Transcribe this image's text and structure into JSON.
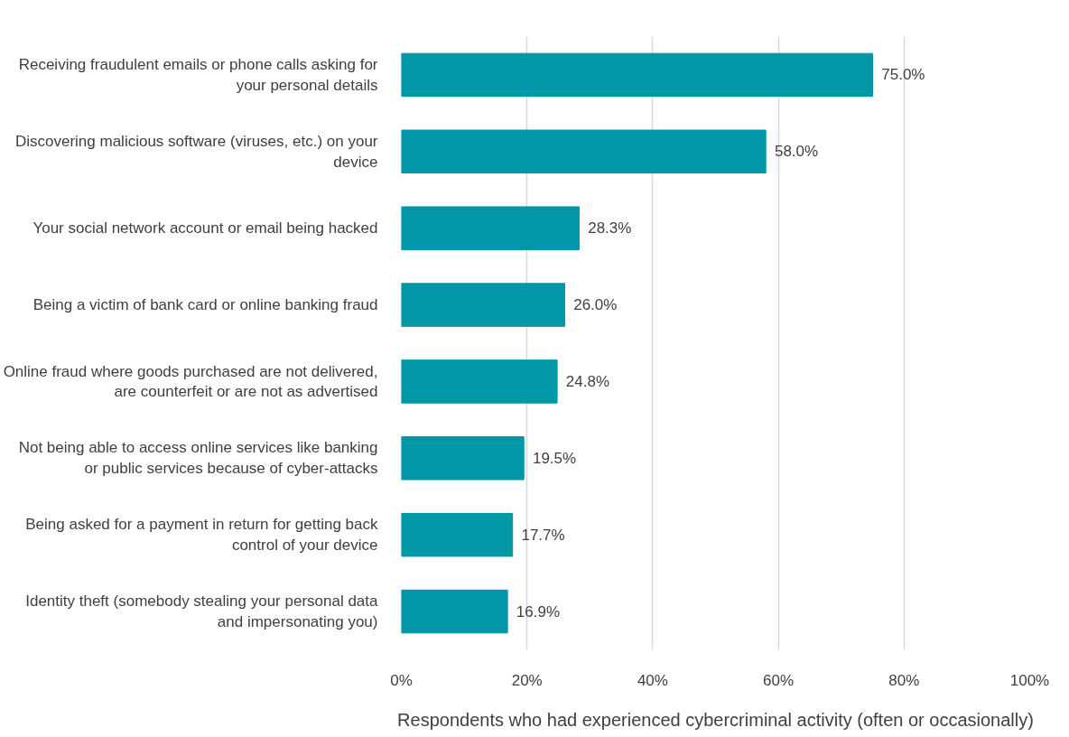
{
  "chart_data": {
    "type": "bar",
    "orientation": "horizontal",
    "xlabel": "Respondents who had experienced cybercriminal activity (often or occasionally)",
    "categories": [
      "Receiving fraudulent emails or phone calls asking for your personal details",
      "Discovering malicious software (viruses, etc.) on your device",
      "Your social network account or email being hacked",
      "Being a victim of bank card or online banking fraud",
      "Online fraud where goods purchased are not delivered, are counterfeit or are not as advertised",
      "Not being able to access online services like banking or public services because of cyber-attacks",
      "Being asked for a payment in return for getting back control of your device",
      "Identity theft (somebody stealing your personal data and impersonating you)"
    ],
    "values": [
      75.0,
      58.0,
      28.3,
      26.0,
      24.8,
      19.5,
      17.7,
      16.9
    ],
    "value_labels": [
      "75.0%",
      "58.0%",
      "28.3%",
      "26.0%",
      "24.8%",
      "19.5%",
      "17.7%",
      "16.9%"
    ],
    "color": "#0097a7",
    "xlim": [
      0,
      100
    ],
    "xticks": [
      {
        "value": 0,
        "label": "0%"
      },
      {
        "value": 20,
        "label": "20%"
      },
      {
        "value": 40,
        "label": "40%"
      },
      {
        "value": 60,
        "label": "60%"
      },
      {
        "value": 80,
        "label": "80%"
      },
      {
        "value": 100,
        "label": "100%"
      }
    ],
    "grid": "x"
  }
}
